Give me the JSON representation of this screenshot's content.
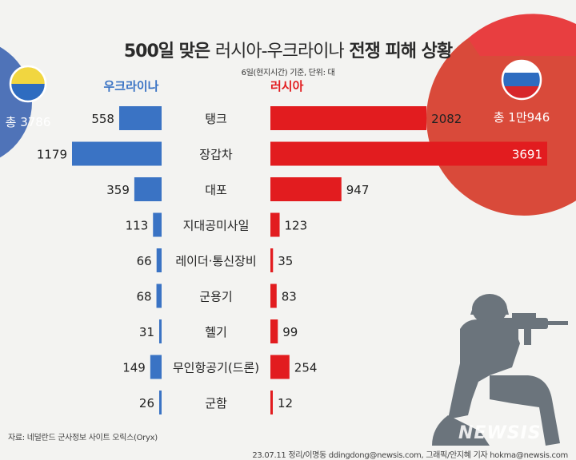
{
  "header": {
    "title_prefix": "500일 맞은",
    "title_mid": "러시아-우크라이나",
    "title_suffix": "전쟁 피해 상황",
    "subtitle": "6일(현지시간) 기준, 단위: 대"
  },
  "ukraine": {
    "label": "우크라이나",
    "total": "총 3786"
  },
  "russia": {
    "label": "러시아",
    "total": "총 1만946"
  },
  "colors": {
    "ukraine_bar": "#3a73c4",
    "russia_bar": "#e21c1f",
    "ukraine_circle": "#4f73b8",
    "russia_circle": "#d94a3a",
    "russia_top": "#e83e40",
    "flag_blue": "#2e6cc0",
    "flag_yellow": "#f1d640",
    "flag_red": "#d7262a",
    "soldier": "#6b747c"
  },
  "source": "자료: 네덜란드 군사정보 사이트 오릭스(Oryx)",
  "credit": "23.07.11  정리/이명동 ddingdong@newsis.com, 그래픽/안지혜 기자 hokma@newsis.com",
  "watermark": "NEWSIS",
  "chart_data": {
    "type": "bar",
    "categories": [
      "탱크",
      "장갑차",
      "대포",
      "지대공미사일",
      "레이더·통신장비",
      "군용기",
      "헬기",
      "무인항공기(드론)",
      "군함"
    ],
    "series": [
      {
        "name": "우크라이나",
        "values": [
          558,
          1179,
          359,
          113,
          66,
          68,
          31,
          149,
          26
        ]
      },
      {
        "name": "러시아",
        "values": [
          2082,
          3691,
          947,
          123,
          35,
          83,
          99,
          254,
          12
        ]
      }
    ],
    "title": "500일 맞은 러시아-우크라이나 전쟁 피해 상황",
    "xlabel": "",
    "ylabel": ""
  }
}
